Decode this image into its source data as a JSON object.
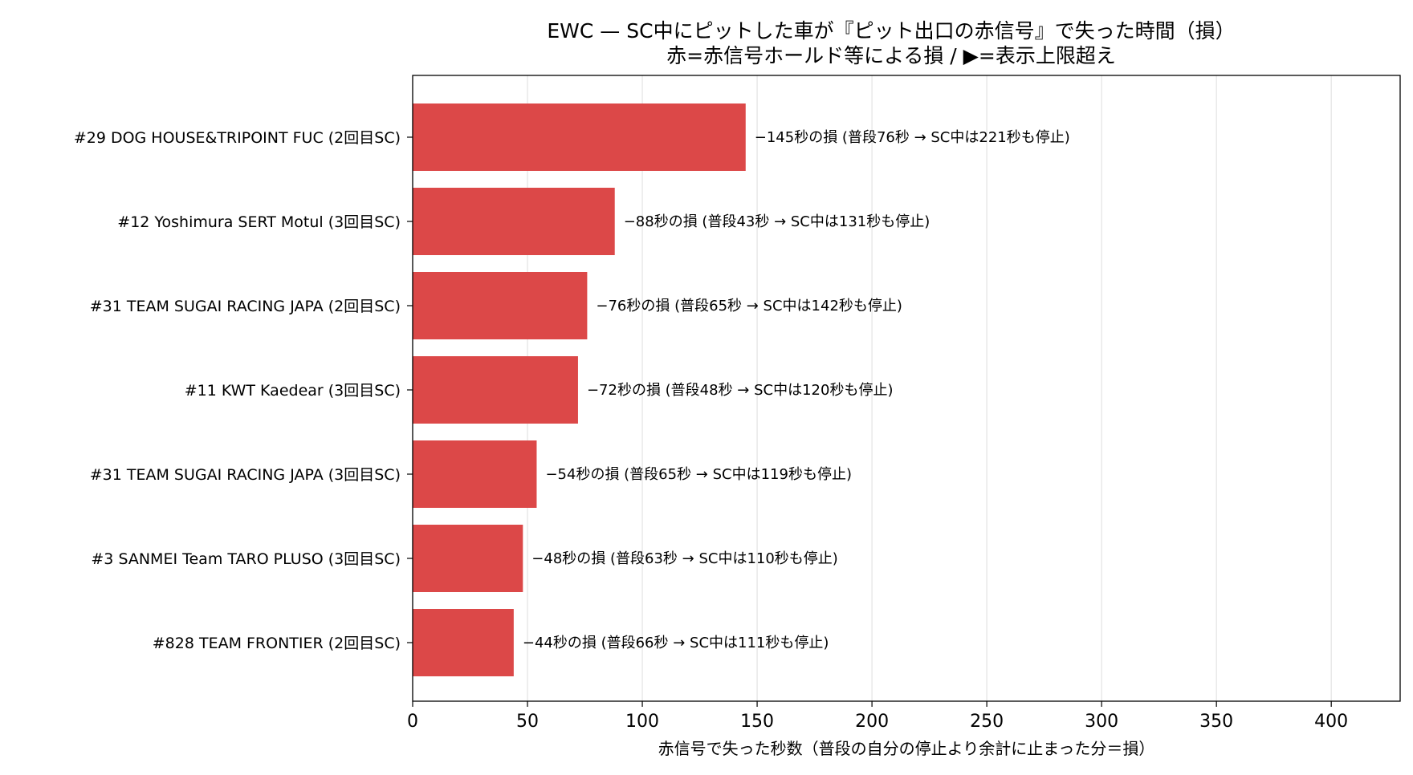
{
  "chart_data": {
    "type": "bar",
    "orientation": "horizontal",
    "title": "EWC — SC中にピットした車が『ピット出口の赤信号』で失った時間（損）",
    "subtitle": "赤=赤信号ホールド等による損 / ▶=表示上限超え",
    "xlabel": "赤信号で失った秒数（普段の自分の停止より余計に止まった分＝損）",
    "ylabel": "",
    "xlim": [
      0,
      430
    ],
    "xticks": [
      0,
      50,
      100,
      150,
      200,
      250,
      300,
      350,
      400
    ],
    "grid": "x",
    "bar_color": "#dc4848",
    "categories": [
      "#29 DOG HOUSE&TRIPOINT FUC  (2回目SC)",
      "#12 Yoshimura SERT Motul  (3回目SC)",
      "#31 TEAM SUGAI RACING JAPA  (2回目SC)",
      "#11 KWT Kaedear  (3回目SC)",
      "#31 TEAM SUGAI RACING JAPA  (3回目SC)",
      "#3 SANMEI Team TARO PLUSO  (3回目SC)",
      "#828 TEAM FRONTIER  (2回目SC)"
    ],
    "values": [
      145,
      88,
      76,
      72,
      54,
      48,
      44
    ],
    "data_labels": [
      "−145秒の損  (普段76秒 → SC中は221秒も停止)",
      "−88秒の損  (普段43秒 → SC中は131秒も停止)",
      "−76秒の損  (普段65秒 → SC中は142秒も停止)",
      "−72秒の損  (普段48秒 → SC中は120秒も停止)",
      "−54秒の損  (普段65秒 → SC中は119秒も停止)",
      "−48秒の損  (普段63秒 → SC中は110秒も停止)",
      "−44秒の損  (普段66秒 → SC中は111秒も停止)"
    ]
  }
}
